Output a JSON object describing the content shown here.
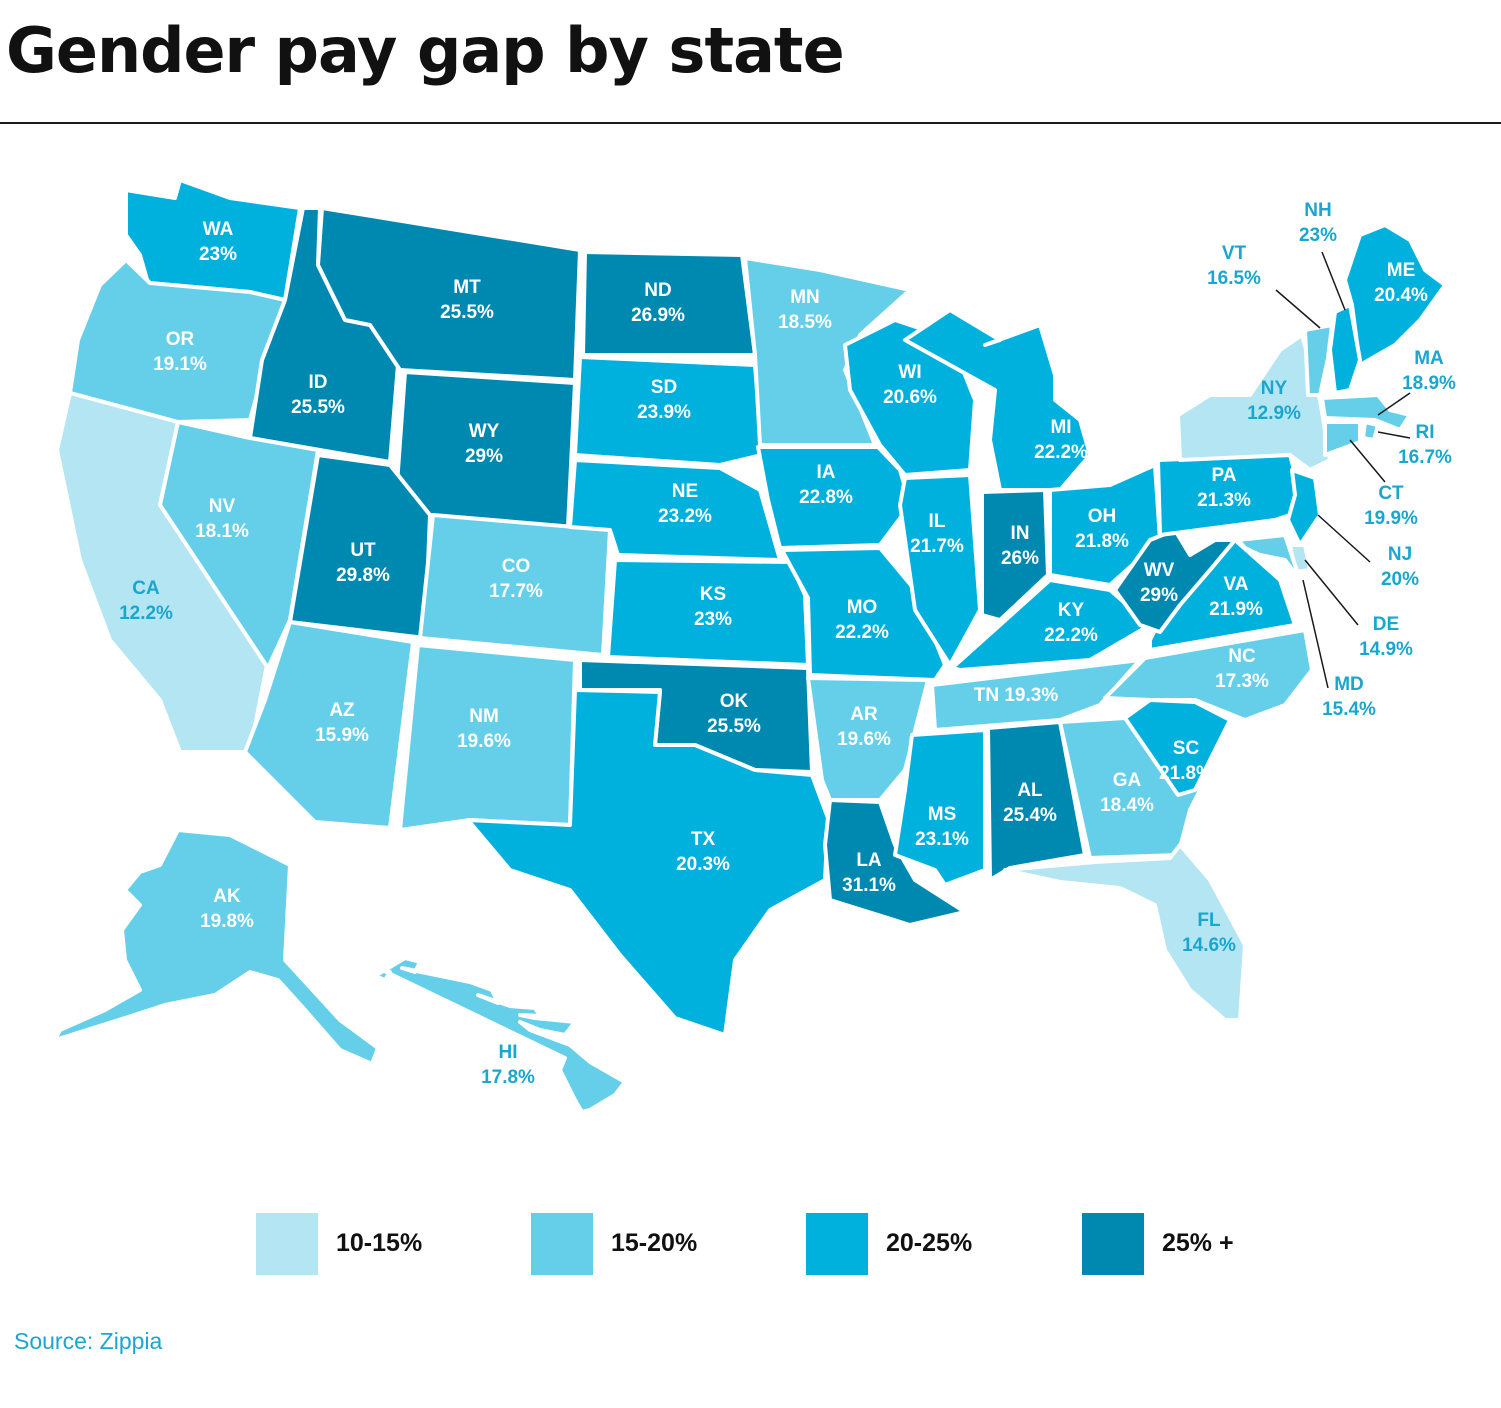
{
  "title": "Gender pay gap by state",
  "source": "Source: Zippia",
  "colors": {
    "bin1": "#b3e5f2",
    "bin2": "#65cfea",
    "bin3": "#00b0dd",
    "bin4": "#0089b0",
    "label_dark_bg": "#ffffff",
    "label_outside": "#1aa6cf"
  },
  "legend": [
    {
      "label": "10-15%",
      "color": "#b3e5f2"
    },
    {
      "label": "15-20%",
      "color": "#65cfea"
    },
    {
      "label": "20-25%",
      "color": "#00b0dd"
    },
    {
      "label": "25% +",
      "color": "#0089b0"
    }
  ],
  "states": [
    {
      "abbr": "WA",
      "value": "23%",
      "bin": 3
    },
    {
      "abbr": "OR",
      "value": "19.1%",
      "bin": 2
    },
    {
      "abbr": "CA",
      "value": "12.2%",
      "bin": 1
    },
    {
      "abbr": "ID",
      "value": "25.5%",
      "bin": 4
    },
    {
      "abbr": "NV",
      "value": "18.1%",
      "bin": 2
    },
    {
      "abbr": "MT",
      "value": "25.5%",
      "bin": 4
    },
    {
      "abbr": "WY",
      "value": "29%",
      "bin": 4
    },
    {
      "abbr": "UT",
      "value": "29.8%",
      "bin": 4
    },
    {
      "abbr": "AZ",
      "value": "15.9%",
      "bin": 2
    },
    {
      "abbr": "CO",
      "value": "17.7%",
      "bin": 2
    },
    {
      "abbr": "NM",
      "value": "19.6%",
      "bin": 2
    },
    {
      "abbr": "ND",
      "value": "26.9%",
      "bin": 4
    },
    {
      "abbr": "SD",
      "value": "23.9%",
      "bin": 3
    },
    {
      "abbr": "NE",
      "value": "23.2%",
      "bin": 3
    },
    {
      "abbr": "KS",
      "value": "23%",
      "bin": 3
    },
    {
      "abbr": "OK",
      "value": "25.5%",
      "bin": 4
    },
    {
      "abbr": "TX",
      "value": "20.3%",
      "bin": 3
    },
    {
      "abbr": "MN",
      "value": "18.5%",
      "bin": 2
    },
    {
      "abbr": "IA",
      "value": "22.8%",
      "bin": 3
    },
    {
      "abbr": "MO",
      "value": "22.2%",
      "bin": 3
    },
    {
      "abbr": "AR",
      "value": "19.6%",
      "bin": 2
    },
    {
      "abbr": "LA",
      "value": "31.1%",
      "bin": 4
    },
    {
      "abbr": "WI",
      "value": "20.6%",
      "bin": 3
    },
    {
      "abbr": "IL",
      "value": "21.7%",
      "bin": 3
    },
    {
      "abbr": "MI",
      "value": "22.2%",
      "bin": 3
    },
    {
      "abbr": "IN",
      "value": "26%",
      "bin": 4
    },
    {
      "abbr": "OH",
      "value": "21.8%",
      "bin": 3
    },
    {
      "abbr": "KY",
      "value": "22.2%",
      "bin": 3
    },
    {
      "abbr": "TN",
      "value": "19.3%",
      "bin": 2
    },
    {
      "abbr": "MS",
      "value": "23.1%",
      "bin": 3
    },
    {
      "abbr": "AL",
      "value": "25.4%",
      "bin": 4
    },
    {
      "abbr": "GA",
      "value": "18.4%",
      "bin": 2
    },
    {
      "abbr": "FL",
      "value": "14.6%",
      "bin": 1
    },
    {
      "abbr": "SC",
      "value": "21.8%",
      "bin": 3
    },
    {
      "abbr": "NC",
      "value": "17.3%",
      "bin": 2
    },
    {
      "abbr": "VA",
      "value": "21.9%",
      "bin": 3
    },
    {
      "abbr": "WV",
      "value": "29%",
      "bin": 4
    },
    {
      "abbr": "PA",
      "value": "21.3%",
      "bin": 3
    },
    {
      "abbr": "NY",
      "value": "12.9%",
      "bin": 1
    },
    {
      "abbr": "ME",
      "value": "20.4%",
      "bin": 3
    },
    {
      "abbr": "NH",
      "value": "23%",
      "bin": 3
    },
    {
      "abbr": "VT",
      "value": "16.5%",
      "bin": 2
    },
    {
      "abbr": "MA",
      "value": "18.9%",
      "bin": 2
    },
    {
      "abbr": "RI",
      "value": "16.7%",
      "bin": 2
    },
    {
      "abbr": "CT",
      "value": "19.9%",
      "bin": 2
    },
    {
      "abbr": "NJ",
      "value": "20%",
      "bin": 3
    },
    {
      "abbr": "DE",
      "value": "14.9%",
      "bin": 1
    },
    {
      "abbr": "MD",
      "value": "15.4%",
      "bin": 2
    },
    {
      "abbr": "AK",
      "value": "19.8%",
      "bin": 2
    },
    {
      "abbr": "HI",
      "value": "17.8%",
      "bin": 2
    }
  ]
}
